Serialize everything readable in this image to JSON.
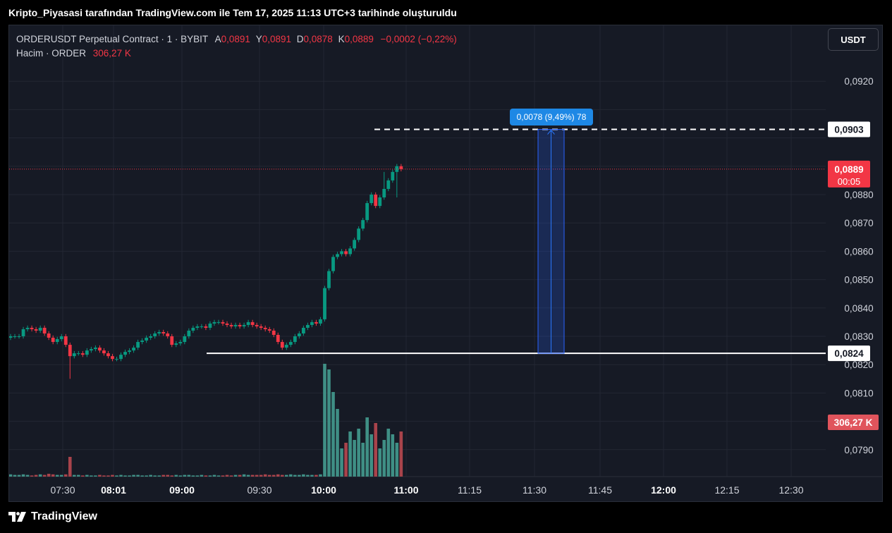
{
  "caption": "Kripto_Piyasasi tarafından TradingView.com ile Tem 17, 2025 11:13 UTC+3 tarihinde oluşturuldu",
  "legend": {
    "symbol": "ORDERUSDT Perpetual Contract · 1 · BYBIT",
    "open_label": "A",
    "open": "0,0891",
    "high_label": "Y",
    "high": "0,0891",
    "low_label": "D",
    "low": "0,0878",
    "close_label": "K",
    "close": "0,0889",
    "change": "−0,0002 (−0,22%)",
    "volume_label": "Hacim · ORDER",
    "volume": "306,27 K"
  },
  "currency_button": "USDT",
  "brand": "TradingView",
  "colors": {
    "up": "#089981",
    "down": "#f23645",
    "volume_up": "#3f8f85",
    "volume_down": "#a8434b",
    "background": "#161a25",
    "grid": "#232733",
    "text": "#d1d4dc",
    "measure": "#2962ff",
    "measure_label": "#1e88e5"
  },
  "chart_data": {
    "type": "candlestick",
    "symbol": "ORDERUSDT",
    "interval_minutes": 1,
    "y_ticks": [
      "0,0790",
      "0,0810",
      "0,0820",
      "0,0830",
      "0,0840",
      "0,0850",
      "0,0860",
      "0,0870",
      "0,0880",
      "0,0920"
    ],
    "y_tick_values": [
      0.079,
      0.081,
      0.082,
      0.083,
      0.084,
      0.085,
      0.086,
      0.087,
      0.088,
      0.092
    ],
    "x_ticks": [
      {
        "label": "07:30",
        "bold": false
      },
      {
        "label": "08:01",
        "bold": true
      },
      {
        "label": "09:00",
        "bold": true
      },
      {
        "label": "09:30",
        "bold": false
      },
      {
        "label": "10:00",
        "bold": true
      },
      {
        "label": "11:00",
        "bold": true
      },
      {
        "label": "11:15",
        "bold": false
      },
      {
        "label": "11:30",
        "bold": false
      },
      {
        "label": "11:45",
        "bold": false
      },
      {
        "label": "12:00",
        "bold": true
      },
      {
        "label": "12:15",
        "bold": false
      },
      {
        "label": "12:30",
        "bold": false
      }
    ],
    "closes": [
      0.083,
      0.083,
      0.083,
      0.08325,
      0.0833,
      0.08325,
      0.0832,
      0.0833,
      0.0831,
      0.08295,
      0.0828,
      0.0829,
      0.083,
      0.0827,
      0.0823,
      0.0824,
      0.0824,
      0.08235,
      0.0825,
      0.08255,
      0.0826,
      0.0825,
      0.0824,
      0.0823,
      0.0822,
      0.0822,
      0.08235,
      0.08245,
      0.0825,
      0.0826,
      0.0828,
      0.08285,
      0.08295,
      0.083,
      0.0831,
      0.08315,
      0.0831,
      0.083,
      0.0827,
      0.08275,
      0.0828,
      0.083,
      0.0832,
      0.0833,
      0.08335,
      0.08335,
      0.0833,
      0.08345,
      0.0835,
      0.0835,
      0.08345,
      0.0834,
      0.08335,
      0.0834,
      0.08335,
      0.0834,
      0.0835,
      0.0834,
      0.08335,
      0.0833,
      0.08325,
      0.0832,
      0.08305,
      0.0828,
      0.0826,
      0.0827,
      0.0828,
      0.083,
      0.0831,
      0.0833,
      0.0834,
      0.0835,
      0.08345,
      0.0836,
      0.0847,
      0.0853,
      0.0858,
      0.0859,
      0.086,
      0.0859,
      0.0861,
      0.0864,
      0.0868,
      0.0871,
      0.0877,
      0.088,
      0.0876,
      0.0879,
      0.0882,
      0.0885,
      0.0888,
      0.089,
      0.0889
    ],
    "volumes_k": [
      4,
      3,
      3,
      4,
      3,
      2,
      3,
      4,
      3,
      5,
      4,
      3,
      3,
      4,
      35,
      3,
      3,
      2,
      3,
      2,
      2,
      3,
      2,
      2,
      3,
      2,
      3,
      2,
      2,
      3,
      3,
      2,
      2,
      3,
      2,
      2,
      3,
      3,
      2,
      3,
      2,
      3,
      3,
      2,
      2,
      3,
      2,
      2,
      3,
      2,
      2,
      3,
      2,
      3,
      3,
      4,
      3,
      3,
      3,
      3,
      4,
      3,
      3,
      4,
      3,
      3,
      4,
      3,
      3,
      4,
      3,
      3,
      3,
      4,
      200,
      190,
      150,
      120,
      50,
      60,
      80,
      65,
      85,
      60,
      105,
      75,
      95,
      50,
      65,
      85,
      75,
      60,
      80
    ],
    "last_price": "0,0889",
    "countdown": "00:05",
    "high_line": "0,0903",
    "support_line": "0,0824",
    "volume_label": "306,27 K",
    "measure_label": "0,0078 (9,49%) 78"
  }
}
